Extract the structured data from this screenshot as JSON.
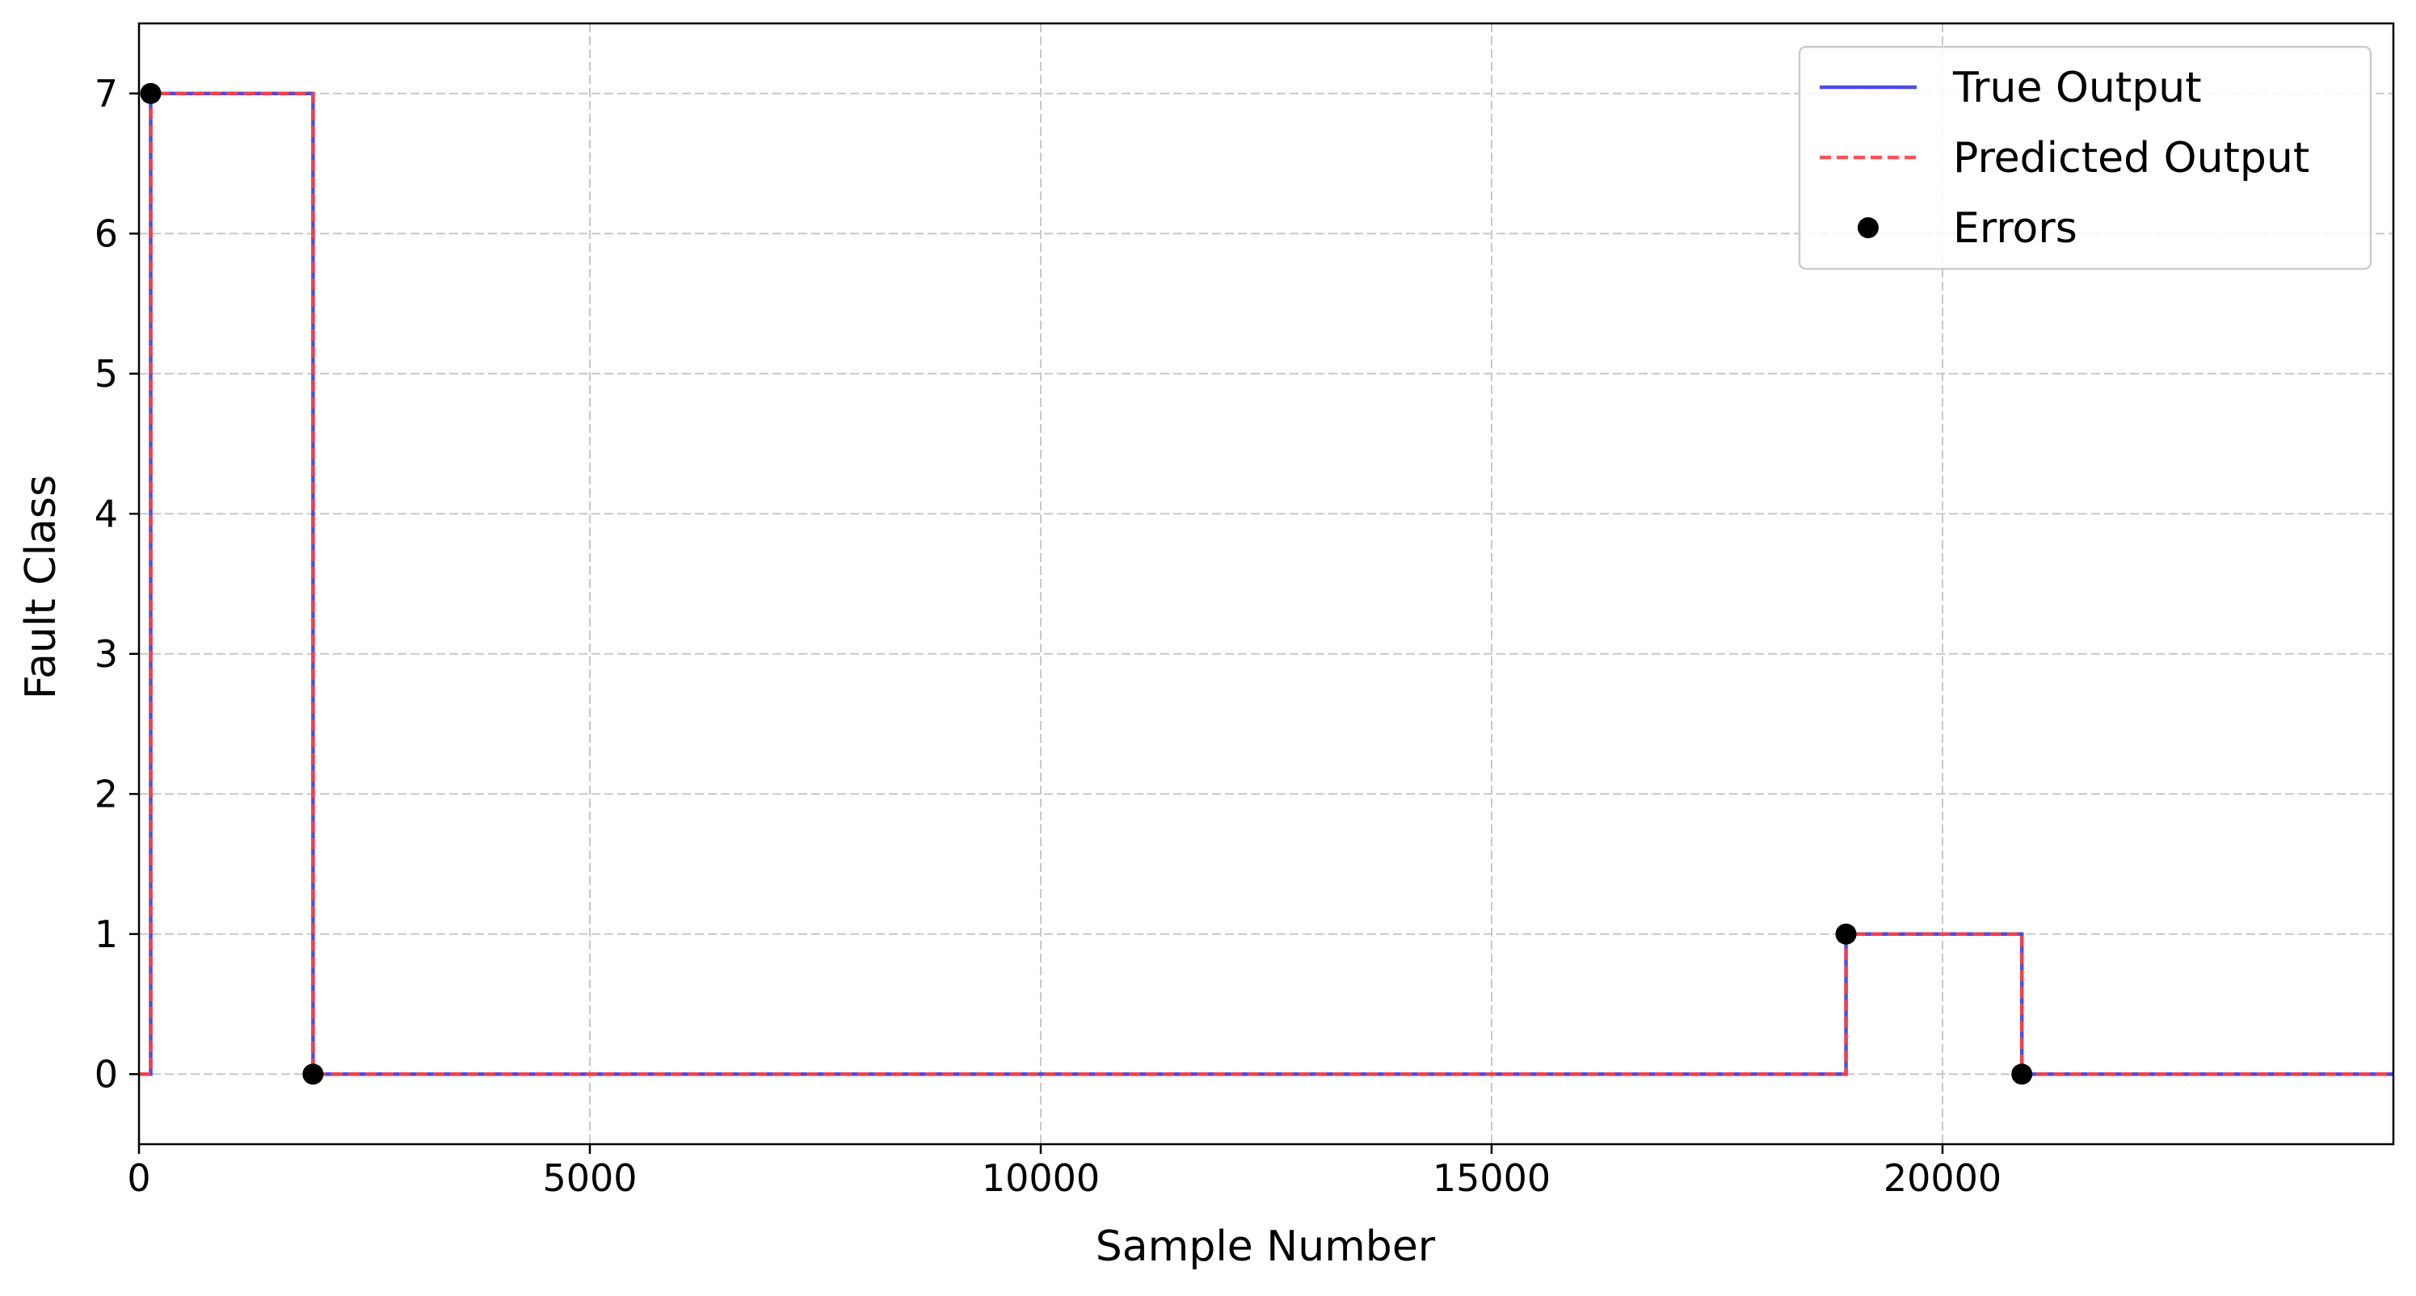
{
  "chart_data": {
    "type": "line",
    "xlabel": "Sample Number",
    "ylabel": "Fault Class",
    "xlim": [
      0,
      25000
    ],
    "ylim": [
      -0.5,
      7.5
    ],
    "xticks": [
      0,
      5000,
      10000,
      15000,
      20000
    ],
    "yticks": [
      0,
      1,
      2,
      3,
      4,
      5,
      6,
      7
    ],
    "grid": true,
    "legend_position": "top-right",
    "series": [
      {
        "name": "True Output",
        "style": "solid",
        "color": "#3a3ae8",
        "x": [
          0,
          130,
          130,
          1930,
          1930,
          18930,
          18930,
          20880,
          20880,
          25000
        ],
        "y": [
          0,
          0,
          7,
          7,
          0,
          0,
          1,
          1,
          0,
          0
        ]
      },
      {
        "name": "Predicted Output",
        "style": "dashed",
        "color": "#ff4040",
        "x": [
          0,
          130,
          130,
          1930,
          1930,
          18930,
          18930,
          20880,
          20880,
          25000
        ],
        "y": [
          0,
          0,
          7,
          7,
          0,
          0,
          1,
          1,
          0,
          0
        ]
      }
    ],
    "errors": {
      "name": "Errors",
      "color": "#000000",
      "points": [
        {
          "x": 130,
          "y": 7
        },
        {
          "x": 1930,
          "y": 0
        },
        {
          "x": 18930,
          "y": 1
        },
        {
          "x": 20880,
          "y": 0
        }
      ]
    }
  }
}
